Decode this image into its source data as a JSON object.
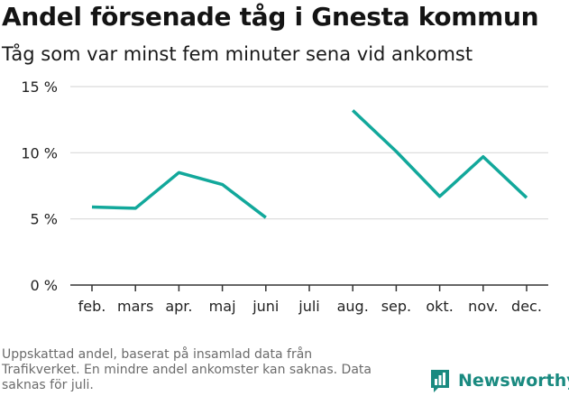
{
  "title": "Andel försenade tåg i Gnesta kommun",
  "subtitle": "Tåg som var minst fem minuter sena vid ankomst",
  "footnote": "Uppskattad andel, baserat på insamlad data från Trafikverket. En mindre andel ankomster kan saknas. Data saknas för juli.",
  "brand": {
    "name": "Newsworthy",
    "icon": "newsworthy-bar-chart-icon"
  },
  "colors": {
    "line": "#12a89b",
    "grid": "#d9d9d9",
    "axis": "#333333",
    "brand": "#1a8a80"
  },
  "chart_data": {
    "type": "line",
    "title": "Andel försenade tåg i Gnesta kommun",
    "subtitle": "Tåg som var minst fem minuter sena vid ankomst",
    "xlabel": "",
    "ylabel": "",
    "categories": [
      "feb.",
      "mars",
      "apr.",
      "maj",
      "juni",
      "juli",
      "aug.",
      "sep.",
      "okt.",
      "nov.",
      "dec."
    ],
    "series": [
      {
        "values": [
          5.9,
          5.8,
          8.5,
          7.6,
          5.1,
          null,
          13.2,
          10.1,
          6.7,
          9.7,
          6.6
        ]
      }
    ],
    "ylim": [
      0,
      15
    ],
    "yticks": [
      0,
      5,
      10,
      15
    ],
    "ytick_labels": [
      "0 %",
      "5 %",
      "10 %",
      "15 %"
    ],
    "grid": true,
    "legend": "none"
  }
}
